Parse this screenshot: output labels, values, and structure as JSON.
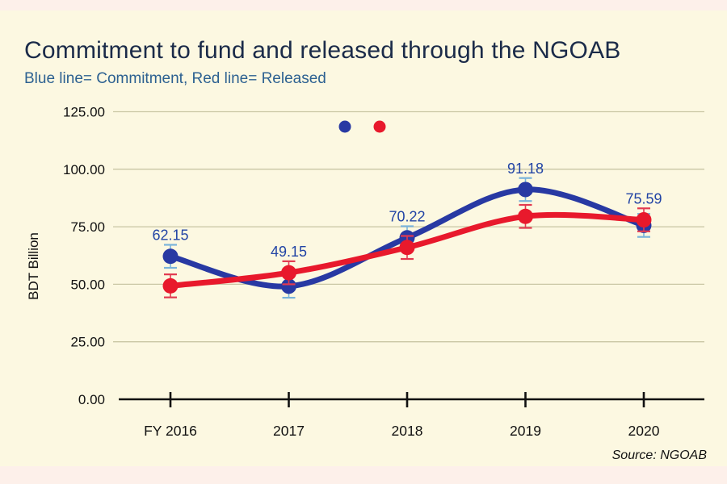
{
  "page": {
    "title": "Commitment to fund and released through the NGOAB",
    "subtitle": "Blue line= Commitment, Red line= Released",
    "ylabel": "BDT Billion",
    "source": "Source: NGOAB"
  },
  "colors": {
    "background": "#FCF8E1",
    "margin_strip": "#FDF0EA",
    "title_text": "#1B2B49",
    "subtitle_text": "#2D6191",
    "gridline": "#C9C6A4",
    "axis": "#111111",
    "data_label": "#2244A5",
    "commitment_blue": "#2839A3",
    "released_red": "#E8192C"
  },
  "chart_data": {
    "type": "line",
    "title": "Commitment to fund and released through the NGOAB",
    "subtitle": "Blue line= Commitment, Red line= Released",
    "ylabel": "BDT Billion",
    "source": "Source: NGOAB",
    "categories": [
      "FY 2016",
      "2017",
      "2018",
      "2019",
      "2020"
    ],
    "series": [
      {
        "name": "Commitment",
        "color": "#2839A3",
        "error_color": "#7AB4DB",
        "values": [
          62.15,
          49.15,
          70.22,
          91.18,
          75.59
        ],
        "point_labels": [
          "62.15",
          "49.15",
          "70.22",
          "91.18",
          "75.59"
        ],
        "error": 5
      },
      {
        "name": "Released",
        "color": "#E8192C",
        "error_color": "#E23A50",
        "values": [
          49.3,
          55.0,
          66.0,
          79.5,
          78.0
        ],
        "point_labels": [],
        "error": 5
      }
    ],
    "yticks": [
      {
        "value": 0,
        "label": "0.00"
      },
      {
        "value": 25,
        "label": "25.00"
      },
      {
        "value": 50,
        "label": "50.00"
      },
      {
        "value": 75,
        "label": "75.00"
      },
      {
        "value": 100,
        "label": "100.00"
      },
      {
        "value": 125,
        "label": "125.00"
      }
    ],
    "ylim": [
      0,
      125
    ],
    "grid": true,
    "legend": {
      "position": "top-center",
      "items": [
        {
          "name": "Commitment",
          "color": "#2839A3"
        },
        {
          "name": "Released",
          "color": "#E8192C"
        }
      ]
    }
  }
}
